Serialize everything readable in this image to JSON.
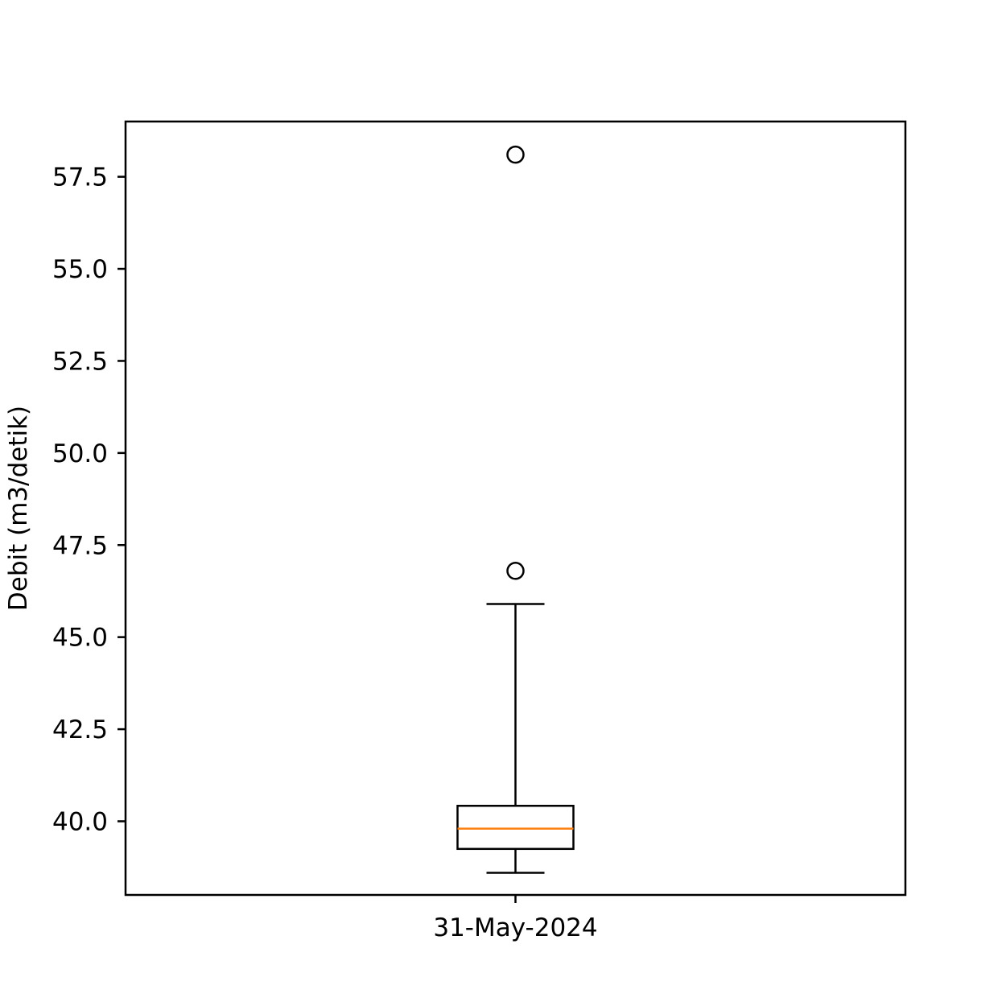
{
  "chart_data": {
    "type": "box",
    "categories": [
      "31-May-2024"
    ],
    "boxes": [
      {
        "category": "31-May-2024",
        "whisker_low": 38.6,
        "q1": 39.25,
        "median": 39.8,
        "q3": 40.42,
        "whisker_high": 45.9,
        "outliers": [
          46.8,
          58.1
        ]
      }
    ],
    "title": "",
    "xlabel": "",
    "ylabel": "Debit (m3/detik)",
    "ylim": [
      38.0,
      59.0
    ],
    "yticks": [
      40.0,
      42.5,
      45.0,
      47.5,
      50.0,
      52.5,
      55.0,
      57.5
    ],
    "ytick_labels": [
      "40.0",
      "42.5",
      "45.0",
      "47.5",
      "50.0",
      "52.5",
      "55.0",
      "57.5"
    ],
    "grid": false,
    "colors": {
      "box": "#000000",
      "median": "#ff7f0e",
      "outlier": "#000000"
    }
  }
}
